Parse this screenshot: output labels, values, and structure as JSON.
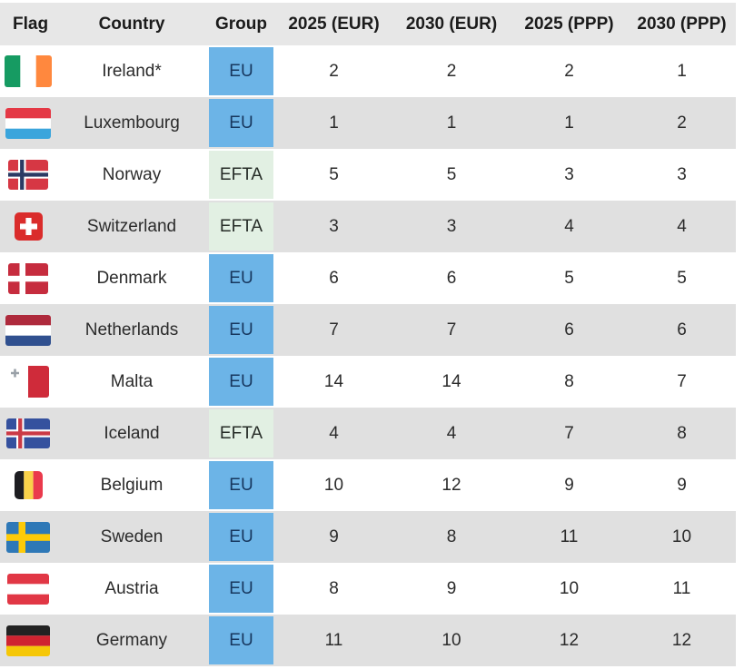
{
  "chart_data": {
    "type": "table",
    "columns": [
      "Flag",
      "Country",
      "Group",
      "2025 (EUR)",
      "2030 (EUR)",
      "2025 (PPP)",
      "2030 (PPP)"
    ],
    "rows": [
      {
        "flag_code": "ie",
        "country": "Ireland*",
        "group": "EU",
        "rank_2025_eur": "2",
        "rank_2030_eur": "2",
        "rank_2025_ppp": "2",
        "rank_2030_ppp": "1"
      },
      {
        "flag_code": "lu",
        "country": "Luxembourg",
        "group": "EU",
        "rank_2025_eur": "1",
        "rank_2030_eur": "1",
        "rank_2025_ppp": "1",
        "rank_2030_ppp": "2"
      },
      {
        "flag_code": "no",
        "country": "Norway",
        "group": "EFTA",
        "rank_2025_eur": "5",
        "rank_2030_eur": "5",
        "rank_2025_ppp": "3",
        "rank_2030_ppp": "3"
      },
      {
        "flag_code": "ch",
        "country": "Switzerland",
        "group": "EFTA",
        "rank_2025_eur": "3",
        "rank_2030_eur": "3",
        "rank_2025_ppp": "4",
        "rank_2030_ppp": "4"
      },
      {
        "flag_code": "dk",
        "country": "Denmark",
        "group": "EU",
        "rank_2025_eur": "6",
        "rank_2030_eur": "6",
        "rank_2025_ppp": "5",
        "rank_2030_ppp": "5"
      },
      {
        "flag_code": "nl",
        "country": "Netherlands",
        "group": "EU",
        "rank_2025_eur": "7",
        "rank_2030_eur": "7",
        "rank_2025_ppp": "6",
        "rank_2030_ppp": "6"
      },
      {
        "flag_code": "mt",
        "country": "Malta",
        "group": "EU",
        "rank_2025_eur": "14",
        "rank_2030_eur": "14",
        "rank_2025_ppp": "8",
        "rank_2030_ppp": "7"
      },
      {
        "flag_code": "is",
        "country": "Iceland",
        "group": "EFTA",
        "rank_2025_eur": "4",
        "rank_2030_eur": "4",
        "rank_2025_ppp": "7",
        "rank_2030_ppp": "8"
      },
      {
        "flag_code": "be",
        "country": "Belgium",
        "group": "EU",
        "rank_2025_eur": "10",
        "rank_2030_eur": "12",
        "rank_2025_ppp": "9",
        "rank_2030_ppp": "9"
      },
      {
        "flag_code": "se",
        "country": "Sweden",
        "group": "EU",
        "rank_2025_eur": "9",
        "rank_2030_eur": "8",
        "rank_2025_ppp": "11",
        "rank_2030_ppp": "10"
      },
      {
        "flag_code": "at",
        "country": "Austria",
        "group": "EU",
        "rank_2025_eur": "8",
        "rank_2030_eur": "9",
        "rank_2025_ppp": "10",
        "rank_2030_ppp": "11"
      },
      {
        "flag_code": "de",
        "country": "Germany",
        "group": "EU",
        "rank_2025_eur": "11",
        "rank_2030_eur": "10",
        "rank_2025_ppp": "12",
        "rank_2030_ppp": "12"
      }
    ],
    "legend_groups": [
      "EU",
      "EFTA"
    ],
    "layout": "alternating row stripes, colored group badges"
  },
  "colors": {
    "eu_bg": "#6cb4e7",
    "eu_text": "#17375e",
    "efta_bg": "#e2f0e3",
    "efta_text": "#262c27",
    "row_alt": "#e0e0e0",
    "header_bg": "#e7e7e7",
    "body_text": "#2b2b2b"
  }
}
